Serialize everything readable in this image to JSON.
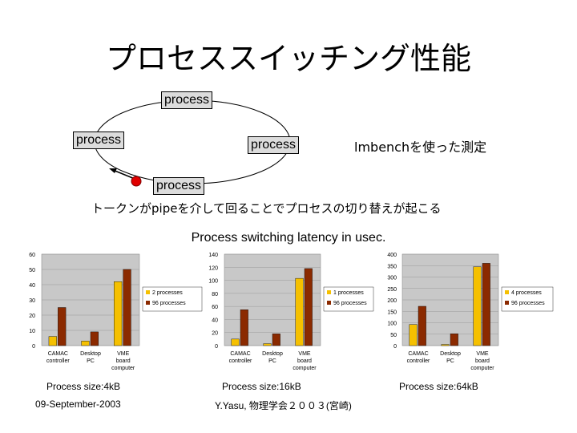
{
  "title": "プロセススイッチング性能",
  "diagram": {
    "process_label": "process",
    "lmbench": "lmbenchを使った測定",
    "caption": "トークンがpipeを介して回ることでプロセスの切り替えが起こる"
  },
  "subtitle": "Process switching latency in usec.",
  "footer": {
    "date": "09-September-2003",
    "author": "Y.Yasu, 物理学会２００３(宮崎)"
  },
  "colors": {
    "series1": "#F5C000",
    "series2": "#8B2A00",
    "plot_bg": "#C8C8C8",
    "token": "#E00000"
  },
  "chart_data": [
    {
      "type": "bar",
      "categories": [
        [
          "CAMAC",
          "controller"
        ],
        [
          "Desktop",
          "PC"
        ],
        [
          "VME",
          "board",
          "computer"
        ]
      ],
      "series": [
        {
          "name": "2 processes",
          "values": [
            6,
            3,
            42
          ]
        },
        {
          "name": "96 processes",
          "values": [
            25,
            9,
            50
          ]
        }
      ],
      "ylim": [
        0,
        60
      ],
      "ticks": [
        0,
        10,
        20,
        30,
        40,
        50,
        60
      ],
      "caption": "Process size:4kB"
    },
    {
      "type": "bar",
      "categories": [
        [
          "CAMAC",
          "controller"
        ],
        [
          "Desktop",
          "PC"
        ],
        [
          "VME",
          "board",
          "computer"
        ]
      ],
      "series": [
        {
          "name": "1 processes",
          "values": [
            10,
            3,
            103
          ]
        },
        {
          "name": "96 processes",
          "values": [
            55,
            18,
            118
          ]
        }
      ],
      "ylim": [
        0,
        140
      ],
      "ticks": [
        0,
        20,
        40,
        60,
        80,
        100,
        120,
        140
      ],
      "caption": "Process size:16kB"
    },
    {
      "type": "bar",
      "categories": [
        [
          "CAMAC",
          "controller"
        ],
        [
          "Desktop",
          "PC"
        ],
        [
          "VME",
          "board",
          "computer"
        ]
      ],
      "series": [
        {
          "name": "4 processes",
          "values": [
            92,
            5,
            345
          ]
        },
        {
          "name": "96 processes",
          "values": [
            172,
            52,
            360
          ]
        }
      ],
      "ylim": [
        0,
        400
      ],
      "ticks": [
        0,
        50,
        100,
        150,
        200,
        250,
        300,
        350,
        400
      ],
      "caption": "Process size:64kB"
    }
  ]
}
